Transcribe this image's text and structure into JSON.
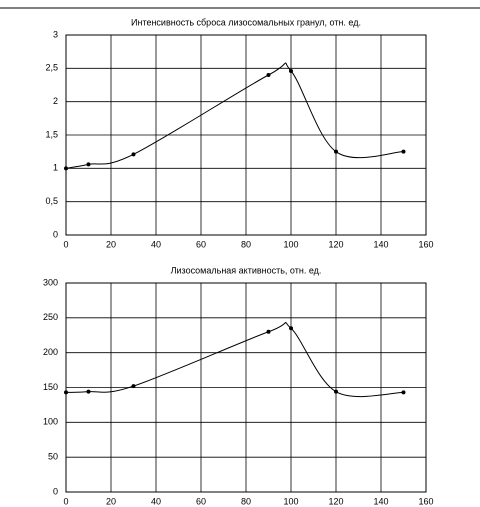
{
  "chart_data": [
    {
      "type": "line",
      "title": "Интенсивность сброса лизосомальных гранул, отн. ед.",
      "x": [
        0,
        10,
        30,
        90,
        100,
        120,
        150
      ],
      "values": [
        1.0,
        1.06,
        1.21,
        2.4,
        2.46,
        1.25,
        1.25
      ],
      "color": "#000000",
      "grid": true,
      "xlim": [
        0,
        160
      ],
      "xticks": [
        0,
        20,
        40,
        60,
        80,
        100,
        120,
        140,
        160
      ],
      "ylim": [
        0,
        3
      ],
      "yticks": [
        0,
        {
          "value": 0.5,
          "label": "0,5"
        },
        1,
        {
          "value": 1.5,
          "label": "1,5"
        },
        2,
        {
          "value": 2.5,
          "label": "2,5"
        },
        3
      ]
    },
    {
      "type": "line",
      "title": "Лизосомальная активность, отн. ед.",
      "x": [
        0,
        10,
        30,
        90,
        100,
        120,
        150
      ],
      "values": [
        143,
        144,
        152,
        230,
        235,
        144,
        143
      ],
      "color": "#000000",
      "grid": true,
      "xlim": [
        0,
        160
      ],
      "xticks": [
        0,
        20,
        40,
        60,
        80,
        100,
        120,
        140,
        160
      ],
      "ylim": [
        0,
        300
      ],
      "yticks": [
        0,
        50,
        100,
        150,
        200,
        250,
        300
      ]
    }
  ]
}
